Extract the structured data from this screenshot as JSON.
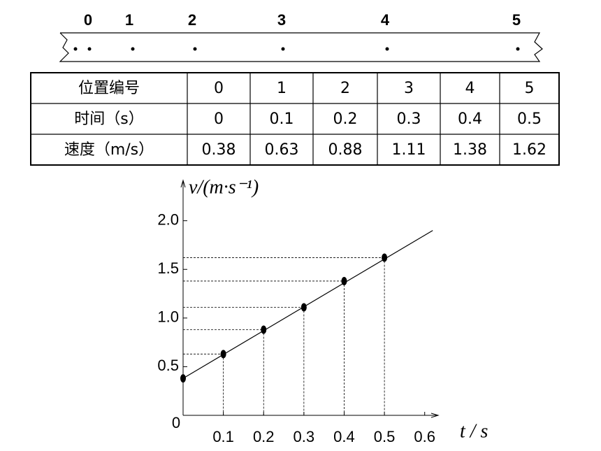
{
  "tape": {
    "marks": [
      0,
      1,
      2,
      3,
      4,
      5
    ]
  },
  "table": {
    "rows": [
      [
        "位置编号",
        "0",
        "1",
        "2",
        "3",
        "4",
        "5"
      ],
      [
        "时间（s）",
        "0",
        "0.1",
        "0.2",
        "0.3",
        "0.4",
        "0.5"
      ],
      [
        "速度（m/s）",
        "0.38",
        "0.63",
        "0.88",
        "1.11",
        "1.38",
        "1.62"
      ]
    ]
  },
  "chart_data": {
    "type": "scatter",
    "y_label": "v/(m·s⁻¹)",
    "x_label": "t / s",
    "origin_label": 0,
    "x": [
      0,
      0.1,
      0.2,
      0.3,
      0.4,
      0.5
    ],
    "values": [
      0.38,
      0.63,
      0.88,
      1.11,
      1.38,
      1.62
    ],
    "trend": {
      "x": [
        0,
        0.62
      ],
      "values": [
        0.38,
        1.9
      ]
    },
    "xlim": [
      0,
      0.63
    ],
    "ylim": [
      0,
      2.4
    ],
    "xticks": [
      0.1,
      0.2,
      0.3,
      0.4,
      0.5,
      0.6
    ],
    "yticks": [
      0.5,
      {
        "value": 1,
        "label": "1.0"
      },
      1.5,
      {
        "value": 2,
        "label": "2.0"
      }
    ],
    "color": "#000000"
  }
}
